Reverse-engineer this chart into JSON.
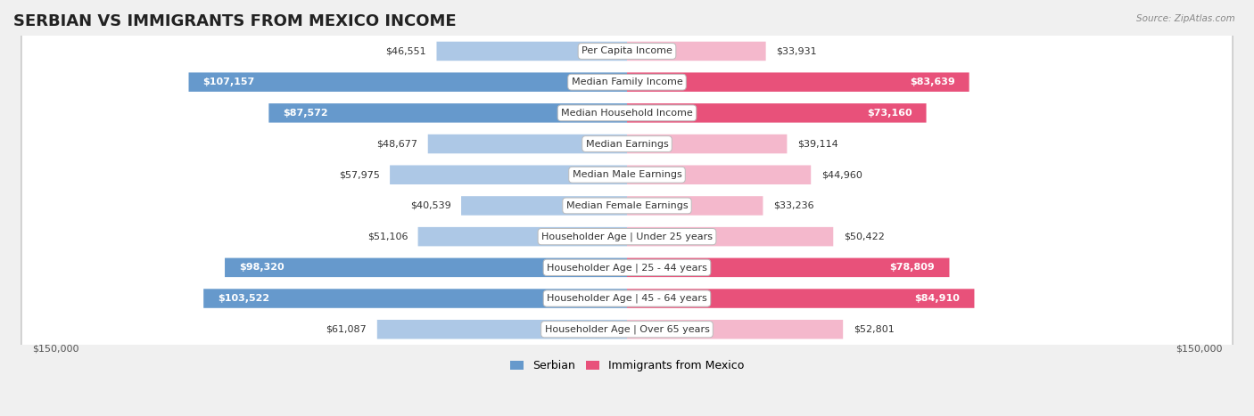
{
  "title": "SERBIAN VS IMMIGRANTS FROM MEXICO INCOME",
  "source": "Source: ZipAtlas.com",
  "categories": [
    "Per Capita Income",
    "Median Family Income",
    "Median Household Income",
    "Median Earnings",
    "Median Male Earnings",
    "Median Female Earnings",
    "Householder Age | Under 25 years",
    "Householder Age | 25 - 44 years",
    "Householder Age | 45 - 64 years",
    "Householder Age | Over 65 years"
  ],
  "serbian_values": [
    46551,
    107157,
    87572,
    48677,
    57975,
    40539,
    51106,
    98320,
    103522,
    61087
  ],
  "mexico_values": [
    33931,
    83639,
    73160,
    39114,
    44960,
    33236,
    50422,
    78809,
    84910,
    52801
  ],
  "serbian_color_light": "#adc8e6",
  "serbian_color_dark": "#6699cc",
  "mexico_color_light": "#f4b8cc",
  "mexico_color_dark": "#e8517a",
  "serbian_threshold": 70000,
  "mexico_threshold": 60000,
  "serbian_text_inside": [
    false,
    true,
    true,
    false,
    false,
    false,
    false,
    true,
    true,
    false
  ],
  "mexico_text_inside": [
    false,
    true,
    true,
    false,
    false,
    false,
    false,
    true,
    true,
    false
  ],
  "max_value": 150000,
  "background_color": "#f0f0f0",
  "row_bg_color": "#ffffff",
  "legend_serbian": "Serbian",
  "legend_mexico": "Immigrants from Mexico",
  "xlabel_left": "$150,000",
  "xlabel_right": "$150,000",
  "title_fontsize": 13,
  "category_fontsize": 8,
  "value_fontsize": 8
}
